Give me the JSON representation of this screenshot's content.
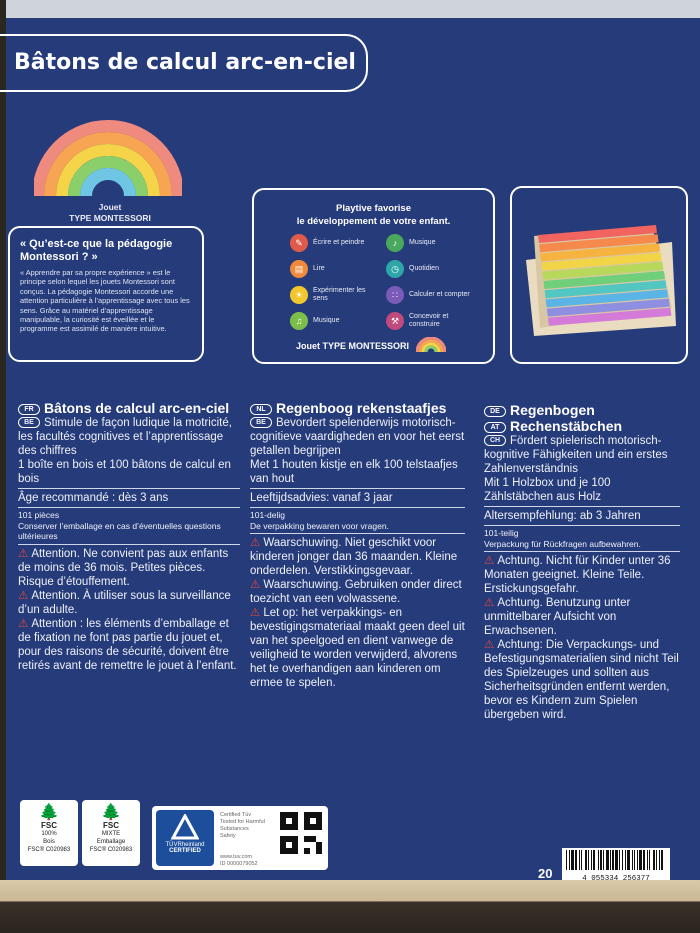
{
  "title": "Bâtons de calcul arc-en-ciel",
  "jouet_label": "Jouet",
  "jouet_type": "TYPE MONTESSORI",
  "montessori_panel": {
    "heading": "« Qu’est-ce que la pédagogie Montessori ? »",
    "body": "« Apprendre par sa propre expérience » est le principe selon lequel les jouets Montessori sont conçus. La pédagogie Montessori accorde une attention particulière à l’apprentissage avec tous les sens. Grâce au matériel d’apprentissage manipulable, la curiosité est éveillée et le programme est assimilé de manière intuitive."
  },
  "playtive_panel": {
    "heading_line1": "Playtive favorise",
    "heading_line2": "le développement de votre enfant.",
    "benefits": [
      {
        "label": "Écrire et peindre",
        "icon": "pencil-icon",
        "color": "#e05a4a"
      },
      {
        "label": "Lire",
        "icon": "book-icon",
        "color": "#f08a3a"
      },
      {
        "label": "Expérimenter les sens",
        "icon": "senses-icon",
        "color": "#f2c72e"
      },
      {
        "label": "Musique",
        "icon": "music-icon",
        "color": "#7bbf4a"
      },
      {
        "label": "Musique",
        "icon": "guitar-icon",
        "color": "#4aa85c"
      },
      {
        "label": "Quotidien",
        "icon": "clock-icon",
        "color": "#2ea6a8"
      },
      {
        "label": "Calculer et compter",
        "icon": "abacus-icon",
        "color": "#7a5bb8"
      },
      {
        "label": "Concevoir et construire",
        "icon": "tools-icon",
        "color": "#c2497c"
      }
    ],
    "footer": "Jouet TYPE MONTESSORI"
  },
  "fr": {
    "badge1": "FR",
    "badge2": "BE",
    "title": "Bâtons de calcul arc-en-ciel",
    "desc": "Stimule de façon ludique la motricité, les facultés cognitives et l’apprentissage des chiffres",
    "content": "1 boîte en bois et 100 bâtons de calcul en bois",
    "age": "Âge recommandé : dès 3 ans",
    "pieces": "101 pièces",
    "keep": "Conserver l’emballage en cas d’éventuelles questions ultérieures",
    "warn1": "Attention. Ne convient pas aux enfants de moins de 36 mois. Petites pièces. Risque d’étouffement.",
    "warn2": "Attention. À utiliser sous la surveillance d’un adulte.",
    "warn3": "Attention : les éléments d’emballage et de fixation ne font pas partie du jouet et, pour des raisons de sécurité, doivent être retirés avant de remettre le jouet à l’enfant."
  },
  "nl": {
    "badge1": "NL",
    "badge2": "BE",
    "title": "Regenboog rekenstaafjes",
    "desc": "Bevordert spelenderwijs motorisch-cognitieve vaardigheden en voor het eerst getallen begrijpen",
    "content": "Met 1 houten kistje en elk 100 telstaafjes van hout",
    "age": "Leeftijdsadvies: vanaf 3 jaar",
    "pieces": "101-delig",
    "keep": "De verpakking bewaren voor vragen.",
    "warn1": "Waarschuwing. Niet geschikt voor kinderen jonger dan 36 maanden. Kleine onderdelen. Verstikkingsgevaar.",
    "warn2": "Waarschuwing. Gebruiken onder direct toezicht van een volwassene.",
    "warn3": "Let op: het verpakkings- en bevestigingsmateriaal maakt geen deel uit van het speelgoed en dient vanwege de veiligheid te worden verwijderd, alvorens het te overhandigen aan kinderen om ermee te spelen."
  },
  "de": {
    "badge1": "DE",
    "badge2": "AT",
    "badge3": "CH",
    "title1": "Regenbogen",
    "title2": "Rechenstäbchen",
    "desc": "Fördert spielerisch motorisch-kognitive Fähigkeiten und ein erstes Zahlenverständnis",
    "content": "Mit 1 Holzbox und je 100 Zählstäbchen aus Holz",
    "age": "Altersempfehlung: ab 3 Jahren",
    "pieces": "101-teilig",
    "keep": "Verpackung für Rückfragen aufbewahren.",
    "warn1": "Achtung. Nicht für Kinder unter 36 Monaten geeignet. Kleine Teile. Erstickungsgefahr.",
    "warn2": "Achtung. Benutzung unter unmittelbarer Aufsicht von Erwachsenen.",
    "warn3": "Achtung: Die Verpackungs- und Befestigungsmaterialien sind nicht Teil des Spielzeuges und sollten aus Sicherheitsgründen entfernt werden, bevor es Kindern zum Spielen übergeben wird."
  },
  "fsc1": {
    "logo": "FSC",
    "line1": "100%",
    "line2": "Bois",
    "code": "FSC® C020983"
  },
  "fsc2": {
    "logo": "FSC",
    "line1": "MIXTE",
    "line2": "Emballage",
    "code": "FSC® C020983"
  },
  "tuv": {
    "brand": "TÜVRheinland",
    "cert": "CERTIFIED",
    "line1": "Certified Tüv",
    "line2": "Tested for Harmful",
    "line3": "Substances",
    "line4": "Safety",
    "url": "www.tuv.com",
    "id": "ID 0000079052"
  },
  "barcode": "4 055334 256377",
  "recycle_mark": "20"
}
